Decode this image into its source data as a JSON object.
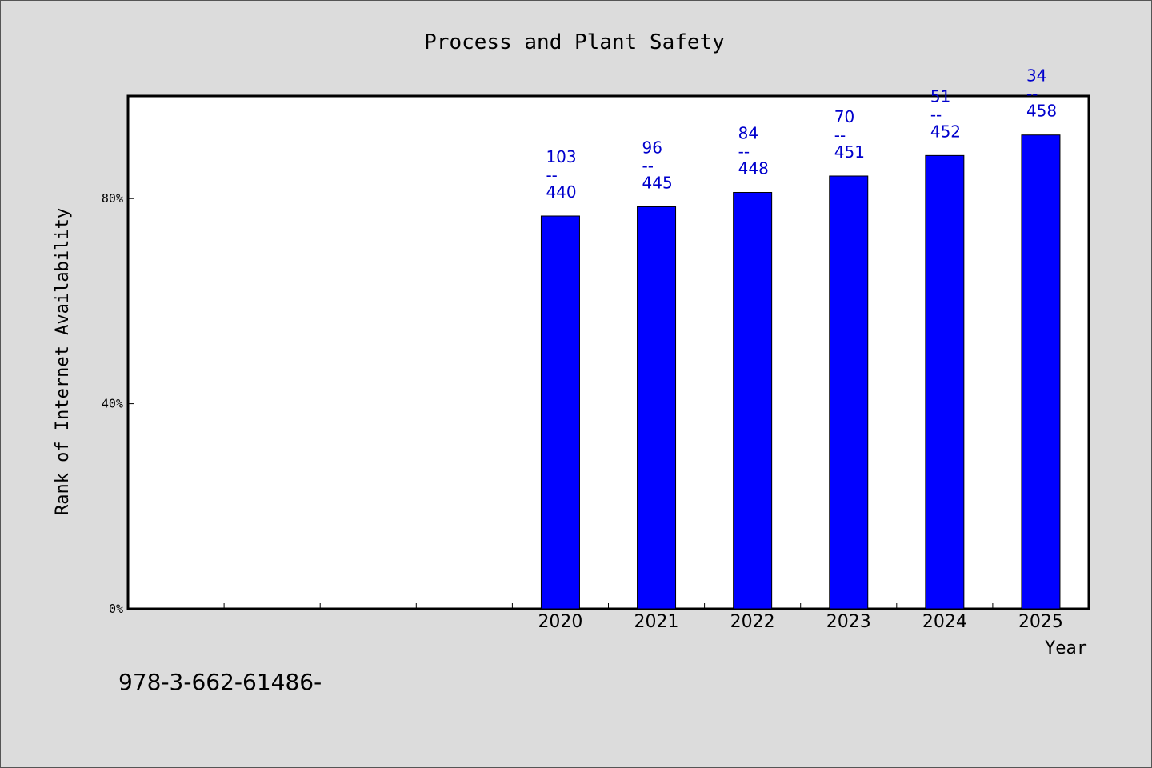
{
  "chart_data": {
    "type": "bar",
    "title": "Process and Plant Safety",
    "xlabel": "Year",
    "ylabel": "Rank of Internet Availability",
    "ylim": [
      0,
      100
    ],
    "y_ticks": [
      {
        "value": 0,
        "label": "0%"
      },
      {
        "value": 40,
        "label": "40%"
      },
      {
        "value": 80,
        "label": "80%"
      }
    ],
    "x_slots": 10,
    "categories": [
      "2020",
      "2021",
      "2022",
      "2023",
      "2024",
      "2025"
    ],
    "category_slots": [
      5,
      6,
      7,
      8,
      9,
      10
    ],
    "values": [
      76.6,
      78.4,
      81.2,
      84.4,
      88.4,
      92.4
    ],
    "labels": [
      {
        "top": "103",
        "mid": "--",
        "bottom": "440"
      },
      {
        "top": "96",
        "mid": "--",
        "bottom": "445"
      },
      {
        "top": "84",
        "mid": "--",
        "bottom": "448"
      },
      {
        "top": "70",
        "mid": "--",
        "bottom": "451"
      },
      {
        "top": "51",
        "mid": "--",
        "bottom": "452"
      },
      {
        "top": "34",
        "mid": "--",
        "bottom": "458"
      }
    ],
    "bar_color": "#0000ff",
    "label_color": "#0000cc",
    "grid": false,
    "legend": "none"
  },
  "footer_text": "978-3-662-61486-"
}
